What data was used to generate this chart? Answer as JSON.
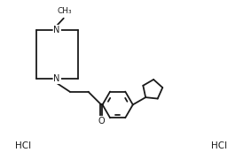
{
  "background_color": "#ffffff",
  "line_color": "#1a1a1a",
  "line_width": 1.3,
  "text_color": "#1a1a1a",
  "font_size": 7.0,
  "font_size_small": 6.5,
  "figsize": [
    2.83,
    1.81
  ],
  "dpi": 100,
  "xlim": [
    0.0,
    10.0
  ],
  "ylim": [
    0.0,
    6.5
  ]
}
